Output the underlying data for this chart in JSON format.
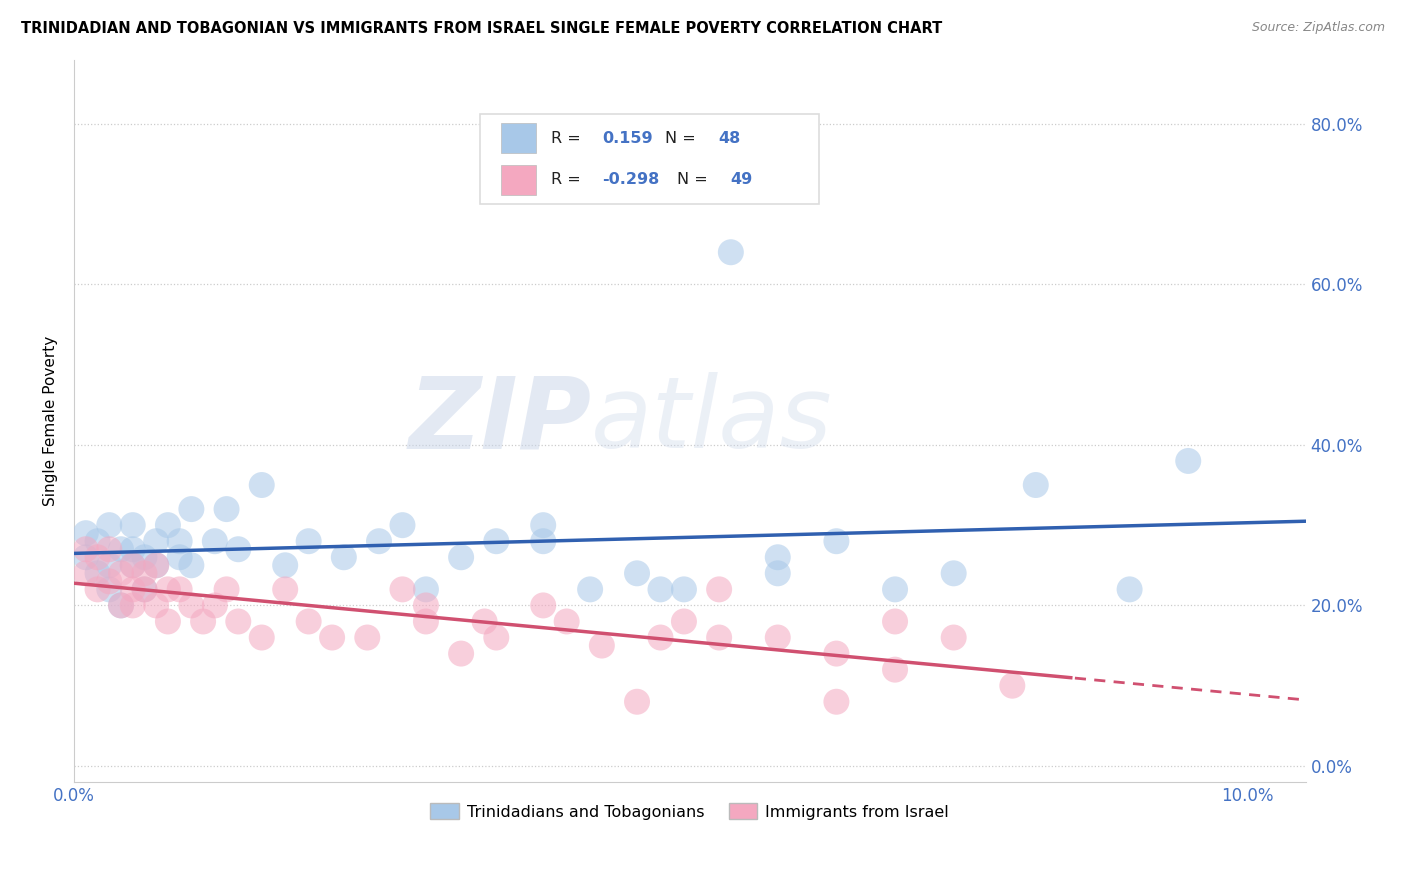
{
  "title": "TRINIDADIAN AND TOBAGONIAN VS IMMIGRANTS FROM ISRAEL SINGLE FEMALE POVERTY CORRELATION CHART",
  "source": "Source: ZipAtlas.com",
  "ylabel": "Single Female Poverty",
  "xlim": [
    0.0,
    0.105
  ],
  "ylim": [
    -0.02,
    0.88
  ],
  "blue_R": 0.159,
  "blue_N": 48,
  "pink_R": -0.298,
  "pink_N": 49,
  "blue_color": "#a8c8e8",
  "pink_color": "#f4a8c0",
  "blue_line_color": "#3060b0",
  "pink_line_color": "#d05070",
  "accent_color": "#4472c4",
  "legend_labels": [
    "Trinidadians and Tobagonians",
    "Immigrants from Israel"
  ],
  "blue_x": [
    0.001,
    0.001,
    0.002,
    0.002,
    0.003,
    0.003,
    0.003,
    0.004,
    0.004,
    0.005,
    0.005,
    0.005,
    0.006,
    0.006,
    0.007,
    0.007,
    0.008,
    0.009,
    0.009,
    0.01,
    0.01,
    0.012,
    0.013,
    0.014,
    0.016,
    0.018,
    0.02,
    0.023,
    0.026,
    0.028,
    0.03,
    0.033,
    0.036,
    0.04,
    0.044,
    0.048,
    0.052,
    0.056,
    0.06,
    0.065,
    0.07,
    0.075,
    0.082,
    0.09,
    0.04,
    0.05,
    0.06,
    0.095
  ],
  "blue_y": [
    0.26,
    0.29,
    0.24,
    0.28,
    0.22,
    0.25,
    0.3,
    0.2,
    0.27,
    0.25,
    0.3,
    0.27,
    0.22,
    0.26,
    0.28,
    0.25,
    0.3,
    0.26,
    0.28,
    0.25,
    0.32,
    0.28,
    0.32,
    0.27,
    0.35,
    0.25,
    0.28,
    0.26,
    0.28,
    0.3,
    0.22,
    0.26,
    0.28,
    0.28,
    0.22,
    0.24,
    0.22,
    0.64,
    0.26,
    0.28,
    0.22,
    0.24,
    0.35,
    0.22,
    0.3,
    0.22,
    0.24,
    0.38
  ],
  "pink_x": [
    0.001,
    0.001,
    0.002,
    0.002,
    0.003,
    0.003,
    0.004,
    0.004,
    0.005,
    0.005,
    0.005,
    0.006,
    0.006,
    0.007,
    0.007,
    0.008,
    0.008,
    0.009,
    0.01,
    0.011,
    0.012,
    0.013,
    0.014,
    0.016,
    0.018,
    0.02,
    0.022,
    0.025,
    0.028,
    0.03,
    0.033,
    0.036,
    0.04,
    0.042,
    0.045,
    0.048,
    0.052,
    0.055,
    0.06,
    0.065,
    0.07,
    0.075,
    0.03,
    0.035,
    0.05,
    0.055,
    0.065,
    0.07,
    0.08
  ],
  "pink_y": [
    0.24,
    0.27,
    0.22,
    0.26,
    0.23,
    0.27,
    0.2,
    0.24,
    0.22,
    0.25,
    0.2,
    0.24,
    0.22,
    0.25,
    0.2,
    0.22,
    0.18,
    0.22,
    0.2,
    0.18,
    0.2,
    0.22,
    0.18,
    0.16,
    0.22,
    0.18,
    0.16,
    0.16,
    0.22,
    0.18,
    0.14,
    0.16,
    0.2,
    0.18,
    0.15,
    0.08,
    0.18,
    0.22,
    0.16,
    0.14,
    0.18,
    0.16,
    0.2,
    0.18,
    0.16,
    0.16,
    0.08,
    0.12,
    0.1
  ]
}
